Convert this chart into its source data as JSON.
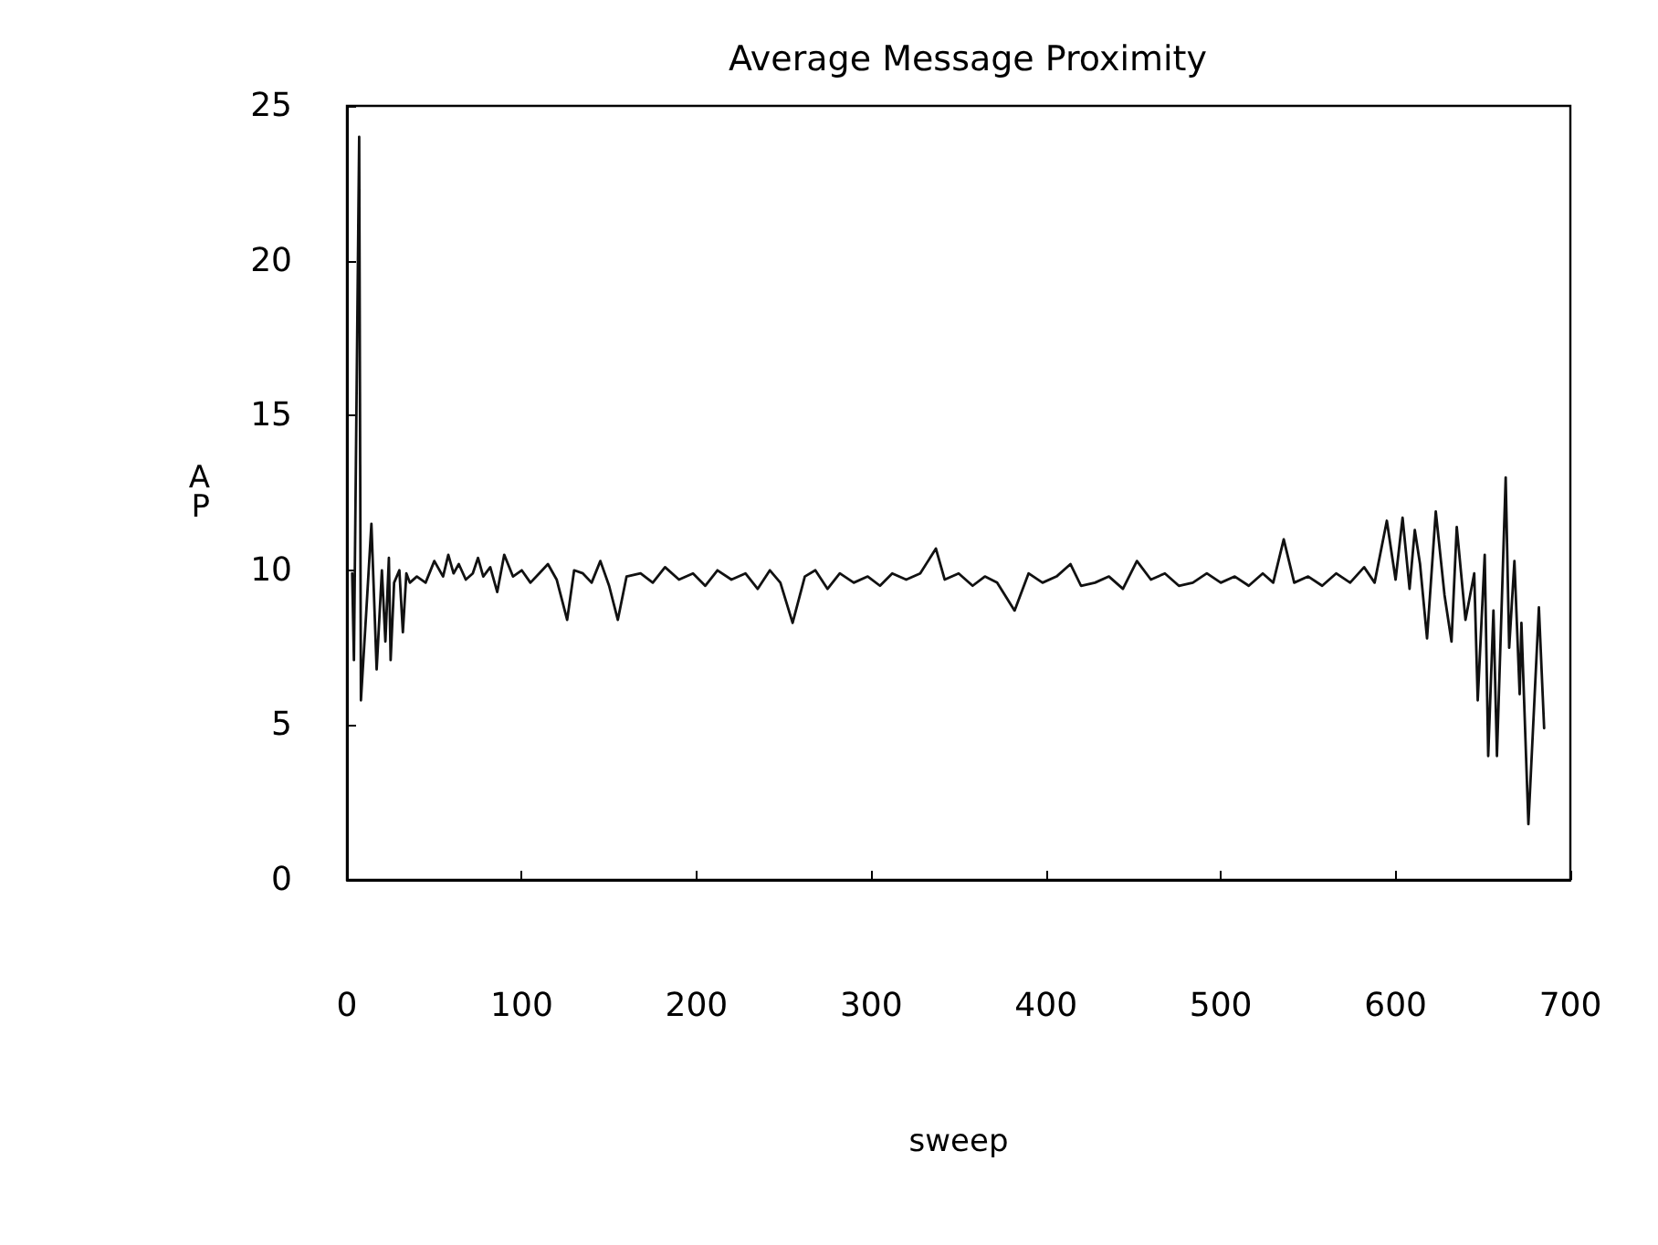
{
  "chart_data": {
    "type": "line",
    "title": "Average Message Proximity",
    "xlabel": "sweep",
    "ylabel": "AP",
    "x": [
      3,
      4,
      7,
      8,
      11,
      14,
      17,
      20,
      22,
      24,
      25,
      27,
      30,
      32,
      34,
      36,
      40,
      45,
      50,
      55,
      58,
      61,
      64,
      68,
      72,
      75,
      78,
      82,
      86,
      90,
      95,
      100,
      105,
      110,
      115,
      120,
      126,
      130,
      135,
      140,
      145,
      150,
      155,
      160,
      168,
      175,
      182,
      190,
      198,
      205,
      212,
      220,
      228,
      235,
      242,
      248,
      255,
      262,
      268,
      275,
      282,
      290,
      298,
      305,
      312,
      320,
      328,
      337,
      342,
      350,
      358,
      365,
      372,
      382,
      390,
      398,
      406,
      414,
      420,
      428,
      436,
      444,
      452,
      460,
      468,
      476,
      484,
      492,
      500,
      508,
      516,
      524,
      530,
      536,
      542,
      550,
      558,
      566,
      574,
      582,
      588,
      595,
      600,
      604,
      608,
      611,
      614,
      618,
      623,
      628,
      632,
      635,
      640,
      645,
      647,
      651,
      653,
      656,
      658,
      663,
      665,
      668,
      671,
      672,
      676,
      682,
      685
    ],
    "values": [
      9.9,
      7.1,
      24.0,
      5.8,
      8.6,
      11.5,
      6.8,
      10.0,
      7.7,
      10.4,
      7.1,
      9.6,
      10.0,
      8.0,
      9.9,
      9.6,
      9.8,
      9.6,
      10.3,
      9.8,
      10.5,
      9.9,
      10.2,
      9.7,
      9.9,
      10.4,
      9.8,
      10.1,
      9.3,
      10.5,
      9.8,
      10.0,
      9.6,
      9.9,
      10.2,
      9.7,
      8.4,
      10.0,
      9.9,
      9.6,
      10.3,
      9.5,
      8.4,
      9.8,
      9.9,
      9.6,
      10.1,
      9.7,
      9.9,
      9.5,
      10.0,
      9.7,
      9.9,
      9.4,
      10.0,
      9.6,
      8.3,
      9.8,
      10.0,
      9.4,
      9.9,
      9.6,
      9.8,
      9.5,
      9.9,
      9.7,
      9.9,
      10.7,
      9.7,
      9.9,
      9.5,
      9.8,
      9.6,
      8.7,
      9.9,
      9.6,
      9.8,
      10.2,
      9.5,
      9.6,
      9.8,
      9.4,
      10.3,
      9.7,
      9.9,
      9.5,
      9.6,
      9.9,
      9.6,
      9.8,
      9.5,
      9.9,
      9.6,
      11.0,
      9.6,
      9.8,
      9.5,
      9.9,
      9.6,
      10.1,
      9.6,
      11.6,
      9.7,
      11.7,
      9.4,
      11.3,
      10.2,
      7.8,
      11.9,
      9.2,
      7.7,
      11.4,
      8.4,
      9.9,
      5.8,
      10.5,
      4.0,
      8.7,
      4.0,
      13.0,
      7.5,
      10.3,
      6.0,
      8.3,
      1.8,
      8.8,
      4.9
    ],
    "color": "#111111",
    "xlim": [
      0,
      700
    ],
    "xticks": [
      0,
      100,
      200,
      300,
      400,
      500,
      600,
      700
    ],
    "ylim": [
      0,
      25
    ],
    "yticks": [
      0,
      5,
      10,
      15,
      20,
      25
    ],
    "grid": false,
    "marker": "none",
    "line_style": "solid"
  }
}
